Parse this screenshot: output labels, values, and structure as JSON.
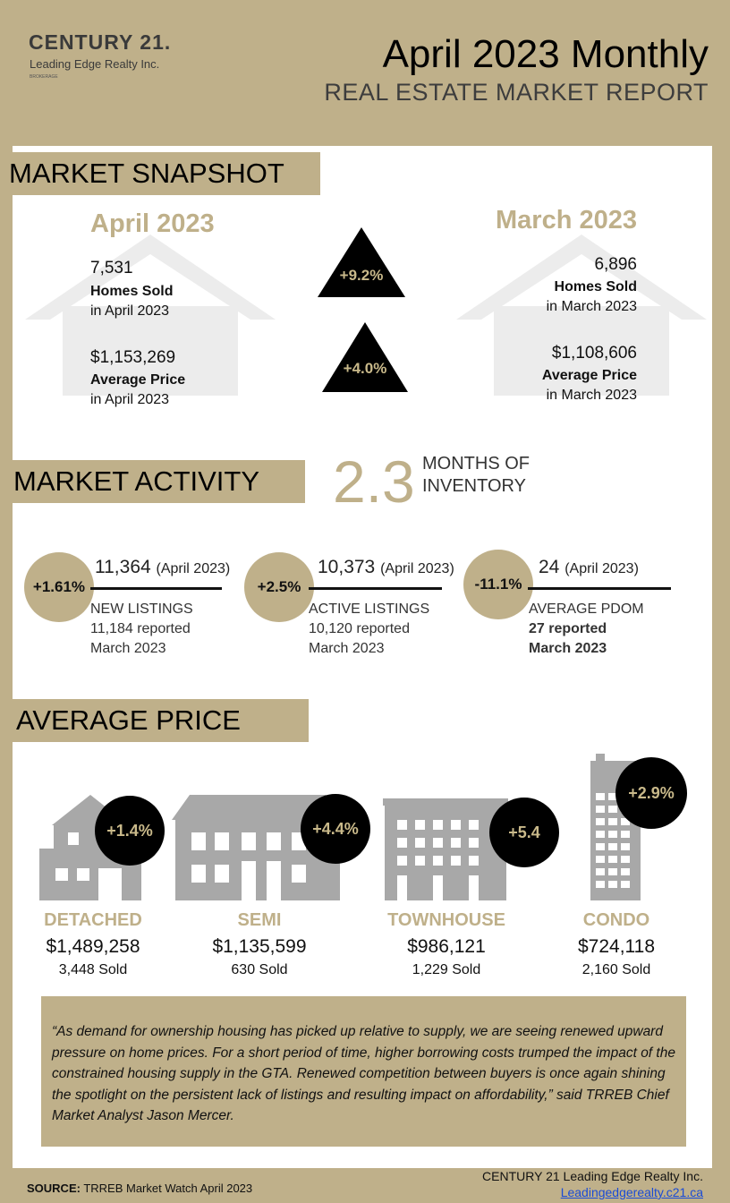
{
  "header": {
    "logo_main": "CENTURY 21.",
    "logo_sub": "Leading Edge Realty Inc.",
    "logo_tiny": "BROKERAGE",
    "title": "April 2023 Monthly",
    "subtitle": "REAL ESTATE MARKET REPORT"
  },
  "snapshot": {
    "tab": "MARKET SNAPSHOT",
    "current": {
      "heading": "April 2023",
      "homes_sold": "7,531",
      "homes_sold_label": "Homes Sold",
      "homes_sold_sub": "in April 2023",
      "avg_price": "$1,153,269",
      "avg_price_label": "Average Price",
      "avg_price_sub": "in April 2023"
    },
    "previous": {
      "heading": "March 2023",
      "homes_sold": "6,896",
      "homes_sold_label": "Homes Sold",
      "homes_sold_sub": "in March 2023",
      "avg_price": "$1,108,606",
      "avg_price_label": "Average Price",
      "avg_price_sub": "in March 2023"
    },
    "change_sold": "+9.2%",
    "change_price": "+4.0%"
  },
  "activity": {
    "tab": "MARKET ACTIVITY",
    "moi_value": "2.3",
    "moi_label_1": "MONTHS OF",
    "moi_label_2": "INVENTORY",
    "items": [
      {
        "change": "+1.61%",
        "value": "11,364",
        "period": "(April 2023)",
        "label": "NEW LISTINGS",
        "prev_1": "11,184  reported",
        "prev_2": "March 2023"
      },
      {
        "change": "+2.5%",
        "value": "10,373",
        "period": "(April 2023)",
        "label": "ACTIVE LISTINGS",
        "prev_1": "10,120 reported",
        "prev_2": "March 2023"
      },
      {
        "change": "-11.1%",
        "value": "24",
        "period": "(April 2023)",
        "label": "AVERAGE PDOM",
        "prev_1": "27 reported",
        "prev_2": "March 2023"
      }
    ]
  },
  "avg_price": {
    "tab": "AVERAGE PRICE",
    "categories": [
      {
        "name": "DETACHED",
        "price": "$1,489,258",
        "sold": "3,448 Sold",
        "change": "+1.4%"
      },
      {
        "name": "SEMI",
        "price": "$1,135,599",
        "sold": "630 Sold",
        "change": "+4.4%"
      },
      {
        "name": "TOWNHOUSE",
        "price": "$986,121",
        "sold": "1,229 Sold",
        "change": "+5.4"
      },
      {
        "name": "CONDO",
        "price": "$724,118",
        "sold": "2,160 Sold",
        "change": "+2.9%"
      }
    ]
  },
  "quote": "“As demand for ownership housing has picked up relative to supply, we are seeing renewed upward pressure on home prices. For a short period of time, higher borrowing costs trumped the impact of the constrained housing supply in the GTA. Renewed competition between buyers is once again shining the spotlight on the persistent lack of listings and resulting impact on affordability,” said TRREB Chief Market Analyst Jason Mercer.",
  "footer": {
    "source_label": "SOURCE:",
    "source_text": " TRREB Market Watch April 2023",
    "company": "CENTURY 21 Leading Edge Realty Inc.",
    "link": "Leadingedgerealty.c21.ca"
  }
}
